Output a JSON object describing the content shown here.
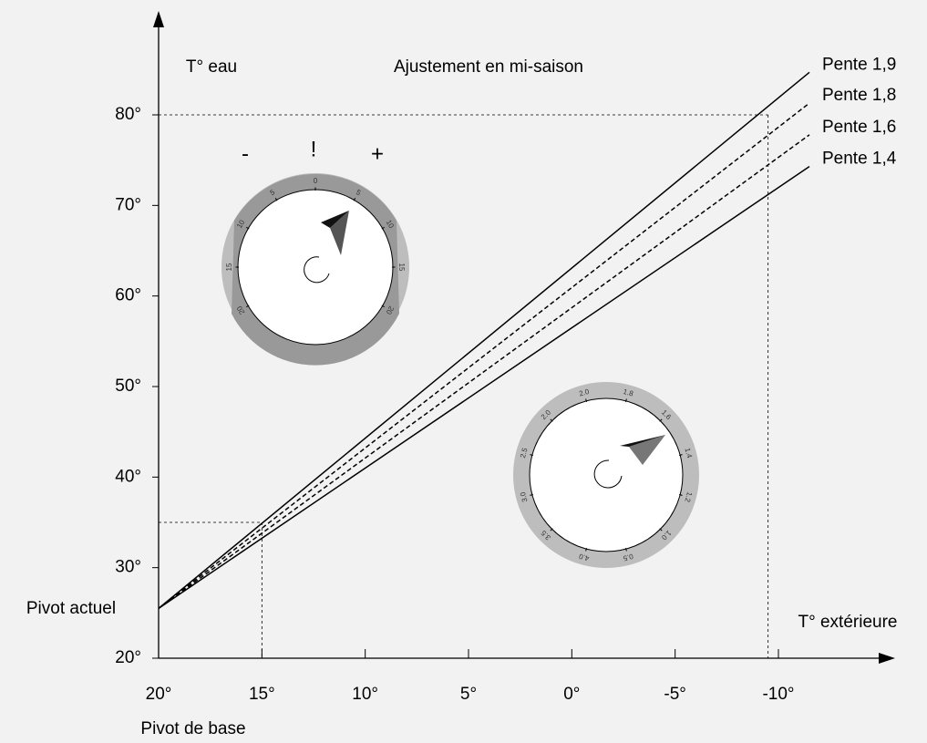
{
  "chart_data": {
    "type": "line",
    "title": "Ajustement en mi-saison",
    "y_label": "T° eau",
    "x_label": "T° extérieure",
    "annotations": [
      "Pivot actuel",
      "Pivot de base"
    ],
    "x": [
      20,
      -11.5
    ],
    "series": [
      {
        "name": "Pente 1,9",
        "color": "#000000",
        "style": "solid",
        "values": [
          25.5,
          84.7
        ]
      },
      {
        "name": "Pente 1,8",
        "color": "#000000",
        "style": "dashed",
        "values": [
          25.5,
          81.3
        ]
      },
      {
        "name": "Pente 1,6",
        "color": "#000000",
        "style": "dashed",
        "values": [
          25.5,
          77.8
        ]
      },
      {
        "name": "Pente 1,4",
        "color": "#000000",
        "style": "solid",
        "values": [
          25.5,
          74.3
        ]
      }
    ],
    "guides": [
      {
        "x": -9.5,
        "y": 80
      },
      {
        "x": 15,
        "y": 35
      }
    ],
    "xlim": [
      20,
      -10
    ],
    "xticks": [
      {
        "value": 20,
        "label": "20°"
      },
      {
        "value": 15,
        "label": "15°"
      },
      {
        "value": 10,
        "label": "10°"
      },
      {
        "value": 5,
        "label": "5°"
      },
      {
        "value": 0,
        "label": "0°"
      },
      {
        "value": -5,
        "label": "-5°"
      },
      {
        "value": -10,
        "label": "-10°"
      }
    ],
    "ylim": [
      20,
      80
    ],
    "yticks": [
      {
        "value": 20,
        "label": "20°"
      },
      {
        "value": 30,
        "label": "30°"
      },
      {
        "value": 40,
        "label": "40°"
      },
      {
        "value": 50,
        "label": "50°"
      },
      {
        "value": 60,
        "label": "60°"
      },
      {
        "value": 70,
        "label": "70°"
      },
      {
        "value": 80,
        "label": "80°"
      }
    ]
  },
  "dial_signs": [
    "-",
    "!",
    "+"
  ],
  "dials": [
    {
      "labels": [
        "20",
        "15",
        "10",
        "5",
        "0",
        "5",
        "10",
        "15",
        "20"
      ]
    },
    {
      "labels": [
        "1.8",
        "1.6",
        "1.4",
        "1.2",
        "1.0",
        "0.5",
        "4.0",
        "3.5",
        "3.0",
        "2.5",
        "2.0",
        "2.0"
      ]
    }
  ]
}
